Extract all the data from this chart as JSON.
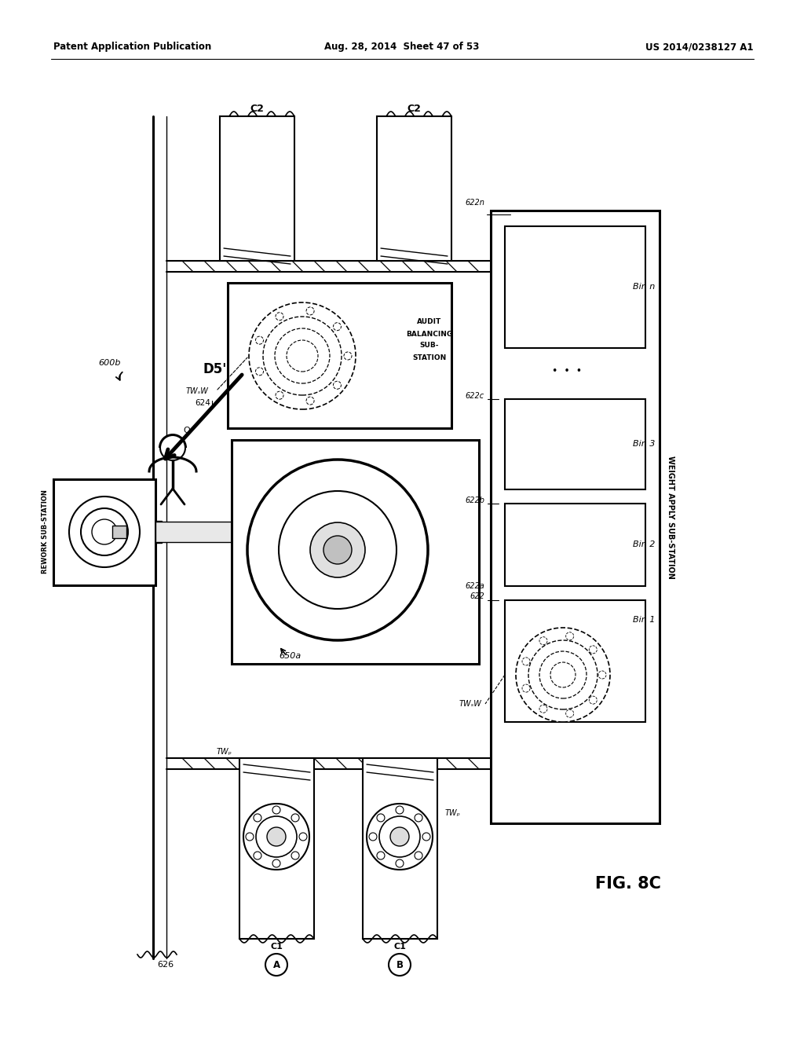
{
  "header_left": "Patent Application Publication",
  "header_mid": "Aug. 28, 2014  Sheet 47 of 53",
  "header_right": "US 2014/0238127 A1",
  "fig_label": "FIG. 8C",
  "background_color": "#ffffff",
  "line_color": "#000000"
}
